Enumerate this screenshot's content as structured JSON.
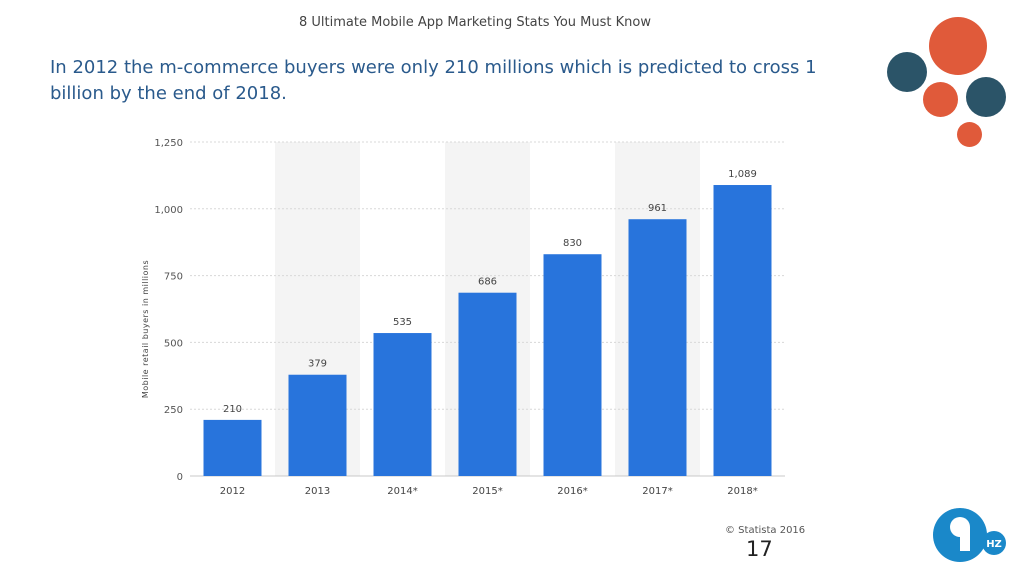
{
  "slide": {
    "header": "8 Ultimate Mobile App Marketing Stats You Must Know",
    "headline": "In 2012 the m-commerce buyers were only 210 millions which is predicted to cross 1 billion by the end of 2018.",
    "copyright": "© Statista 2016",
    "page_number": "17",
    "logo_text": "HZ"
  },
  "colors": {
    "bar": "#2874dc",
    "band": "#f4f4f4",
    "headline": "#2a5a8c",
    "circle_orange": "#e05a3a",
    "circle_navy": "#2b5468",
    "logo_blue": "#1a88c9"
  },
  "chart_data": {
    "type": "bar",
    "categories": [
      "2012",
      "2013",
      "2014*",
      "2015*",
      "2016*",
      "2017*",
      "2018*"
    ],
    "values": [
      210,
      379,
      535,
      686,
      830,
      961,
      1089
    ],
    "value_labels": [
      "210",
      "379",
      "535",
      "686",
      "830",
      "961",
      "1,089"
    ],
    "title": "",
    "xlabel": "",
    "ylabel": "Mobile retail buyers in millions",
    "ylim": [
      0,
      1250
    ],
    "yticks": [
      0,
      250,
      500,
      750,
      1000,
      1250
    ],
    "ytick_labels": [
      "0",
      "250",
      "500",
      "750",
      "1,000",
      "1,250"
    ],
    "grid": true,
    "alternating_bands": true
  }
}
